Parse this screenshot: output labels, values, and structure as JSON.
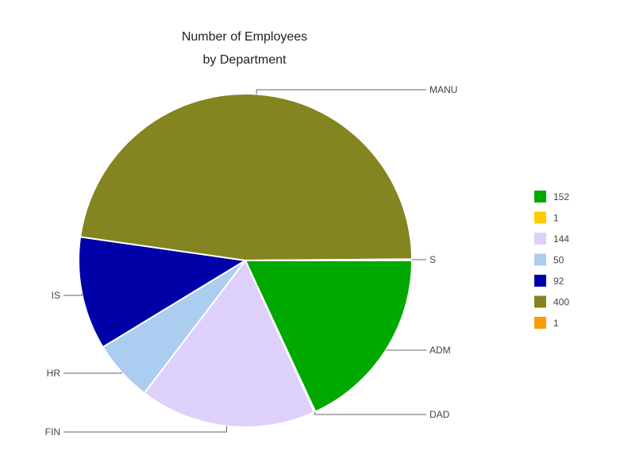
{
  "chart_data": {
    "type": "pie",
    "title_lines": [
      "Number of Employees",
      "by Department"
    ],
    "slices": [
      {
        "label": "ADM",
        "value": 152,
        "color": "#00a800"
      },
      {
        "label": "DAD",
        "value": 1,
        "color": "#ffcc00"
      },
      {
        "label": "FIN",
        "value": 144,
        "color": "#ddd0fb"
      },
      {
        "label": "HR",
        "value": 50,
        "color": "#abcdef"
      },
      {
        "label": "IS",
        "value": 92,
        "color": "#0000a8"
      },
      {
        "label": "MANU",
        "value": 400,
        "color": "#848421"
      },
      {
        "label": "S",
        "value": 1,
        "color": "#ff9900"
      }
    ],
    "legend": {
      "position": "right",
      "entries": [
        "152",
        "1",
        "144",
        "50",
        "92",
        "400",
        "1"
      ]
    }
  }
}
